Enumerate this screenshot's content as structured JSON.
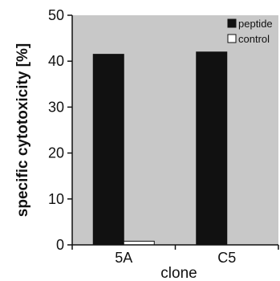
{
  "chart_data": {
    "type": "bar",
    "categories": [
      "5A",
      "C5"
    ],
    "series": [
      {
        "name": "peptide",
        "values": [
          41.5,
          42.0
        ]
      },
      {
        "name": "control",
        "values": [
          0.8,
          0
        ]
      }
    ],
    "title": "",
    "xlabel": "clone",
    "ylabel": "specific cytotoxicity [%]",
    "ylim": [
      0,
      50
    ],
    "yticks": [
      0,
      10,
      20,
      30,
      40,
      50
    ],
    "grid": false,
    "legend_position": "top-right",
    "colors": {
      "plot_background": "#c8c8c8",
      "peptide": "#111111",
      "control": "#ffffff",
      "axis": "#111111"
    }
  }
}
